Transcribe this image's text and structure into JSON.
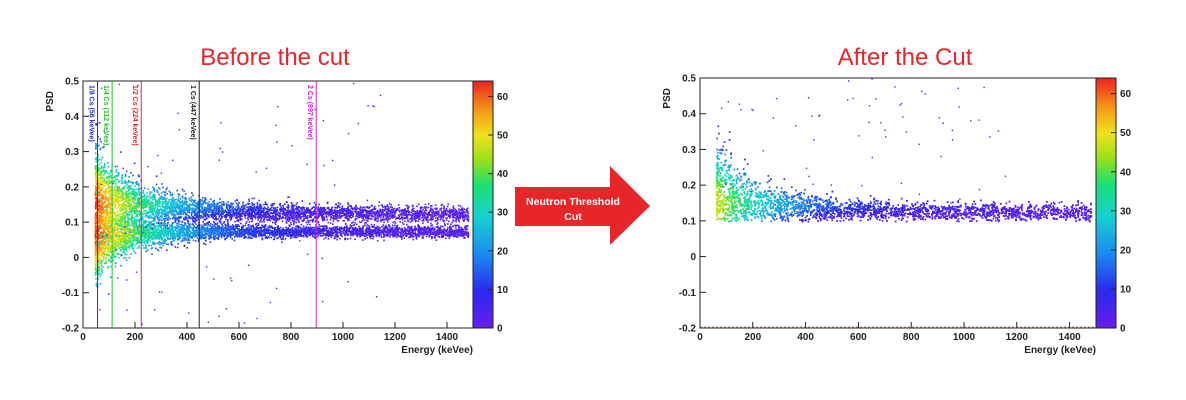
{
  "panels": {
    "left_title": "Before the cut",
    "right_title": "After the Cut"
  },
  "arrow": {
    "label_line1": "Neutron Threshold",
    "label_line2": "Cut",
    "color": "#e8262a"
  },
  "chart_data": [
    {
      "type": "heatmap",
      "title": "Before the cut",
      "xlabel": "Energy (keVee)",
      "ylabel": "PSD",
      "xlim": [
        0,
        1500
      ],
      "ylim": [
        -0.2,
        0.5
      ],
      "x_ticks": [
        0,
        200,
        400,
        600,
        800,
        1000,
        1200,
        1400
      ],
      "y_ticks": [
        -0.2,
        -0.1,
        0,
        0.1,
        0.2,
        0.3,
        0.4,
        0.5
      ],
      "colorbar": {
        "min": 0,
        "max": 64,
        "ticks": [
          0,
          10,
          20,
          30,
          40,
          50,
          60
        ]
      },
      "bands": [
        {
          "name": "neutron band",
          "psd_mean_high_energy": 0.125
        },
        {
          "name": "gamma band",
          "psd_mean_high_energy": 0.075
        }
      ],
      "energy_threshold": 45,
      "markers": [
        {
          "label": "1/8 Cs (56 keVee)",
          "energy": 56,
          "color": "#1f2bd6"
        },
        {
          "label": "1/4 Cs (112 keVee)",
          "energy": 112,
          "color": "#22c422"
        },
        {
          "label": "1/2 Cs (224 keVee)",
          "energy": 224,
          "color": "#e8262a"
        },
        {
          "label": "1 Cs (447 keVee)",
          "energy": 447,
          "color": "#222222"
        },
        {
          "label": "2 Cs (897 keVee)",
          "energy": 897,
          "color": "#d21fd2"
        }
      ]
    },
    {
      "type": "heatmap",
      "title": "After the Cut",
      "xlabel": "Energy (keVee)",
      "ylabel": "PSD",
      "xlim": [
        0,
        1500
      ],
      "ylim": [
        -0.2,
        0.5
      ],
      "x_ticks": [
        0,
        200,
        400,
        600,
        800,
        1000,
        1200,
        1400
      ],
      "y_ticks": [
        -0.2,
        -0.1,
        0,
        0.1,
        0.2,
        0.3,
        0.4,
        0.5
      ],
      "colorbar": {
        "min": 0,
        "max": 64,
        "ticks": [
          0,
          10,
          20,
          30,
          40,
          50,
          60
        ]
      },
      "psd_cut": 0.1,
      "bands": [
        {
          "name": "neutron band",
          "psd_mean_high_energy": 0.125
        }
      ],
      "energy_threshold": 60
    }
  ]
}
